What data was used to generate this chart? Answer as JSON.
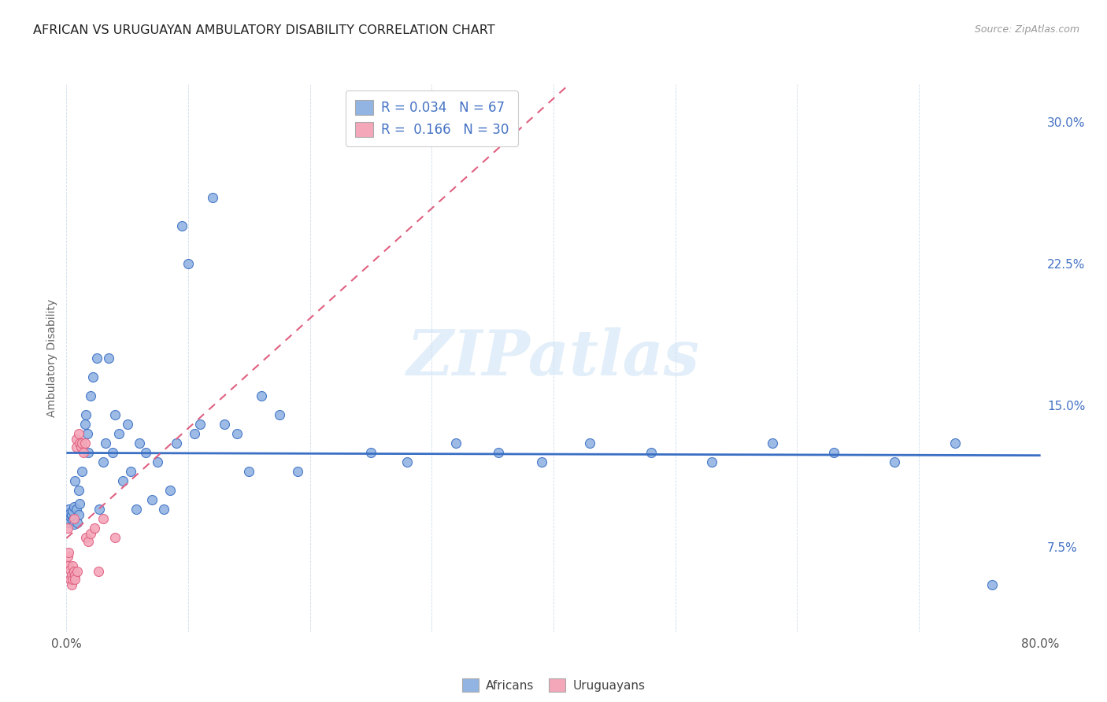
{
  "title": "AFRICAN VS URUGUAYAN AMBULATORY DISABILITY CORRELATION CHART",
  "source": "Source: ZipAtlas.com",
  "ylabel": "Ambulatory Disability",
  "xlim": [
    0.0,
    0.8
  ],
  "ylim": [
    0.03,
    0.32
  ],
  "xticks": [
    0.0,
    0.1,
    0.2,
    0.3,
    0.4,
    0.5,
    0.6,
    0.7,
    0.8
  ],
  "xticklabels": [
    "0.0%",
    "",
    "",
    "",
    "",
    "",
    "",
    "",
    "80.0%"
  ],
  "yticks_right": [
    0.075,
    0.15,
    0.225,
    0.3
  ],
  "yticklabels_right": [
    "7.5%",
    "15.0%",
    "22.5%",
    "30.0%"
  ],
  "R_african": 0.034,
  "N_african": 67,
  "R_uruguayan": 0.166,
  "N_uruguayan": 30,
  "african_color": "#92b4e3",
  "uruguayan_color": "#f4a7b9",
  "african_line_color": "#3a6fc4",
  "uruguayan_line_color": "#e06080",
  "legend_label_african": "Africans",
  "legend_label_uruguayan": "Uruguayans",
  "african_x": [
    0.001,
    0.002,
    0.002,
    0.003,
    0.003,
    0.004,
    0.005,
    0.005,
    0.006,
    0.006,
    0.007,
    0.008,
    0.009,
    0.01,
    0.01,
    0.011,
    0.012,
    0.013,
    0.015,
    0.016,
    0.017,
    0.018,
    0.02,
    0.022,
    0.025,
    0.027,
    0.03,
    0.032,
    0.035,
    0.038,
    0.04,
    0.043,
    0.046,
    0.05,
    0.053,
    0.057,
    0.06,
    0.065,
    0.07,
    0.075,
    0.08,
    0.085,
    0.09,
    0.095,
    0.1,
    0.105,
    0.11,
    0.12,
    0.13,
    0.14,
    0.15,
    0.16,
    0.175,
    0.19,
    0.25,
    0.28,
    0.32,
    0.355,
    0.39,
    0.43,
    0.48,
    0.53,
    0.58,
    0.63,
    0.68,
    0.73,
    0.76
  ],
  "african_y": [
    0.09,
    0.088,
    0.095,
    0.091,
    0.093,
    0.092,
    0.094,
    0.089,
    0.096,
    0.087,
    0.11,
    0.095,
    0.088,
    0.105,
    0.092,
    0.098,
    0.13,
    0.115,
    0.14,
    0.145,
    0.135,
    0.125,
    0.155,
    0.165,
    0.175,
    0.095,
    0.12,
    0.13,
    0.175,
    0.125,
    0.145,
    0.135,
    0.11,
    0.14,
    0.115,
    0.095,
    0.13,
    0.125,
    0.1,
    0.12,
    0.095,
    0.105,
    0.13,
    0.245,
    0.225,
    0.135,
    0.14,
    0.26,
    0.14,
    0.135,
    0.115,
    0.155,
    0.145,
    0.115,
    0.125,
    0.12,
    0.13,
    0.125,
    0.12,
    0.13,
    0.125,
    0.12,
    0.13,
    0.125,
    0.12,
    0.13,
    0.055
  ],
  "uruguayan_x": [
    0.001,
    0.001,
    0.002,
    0.002,
    0.003,
    0.003,
    0.004,
    0.004,
    0.005,
    0.005,
    0.006,
    0.006,
    0.007,
    0.007,
    0.008,
    0.008,
    0.009,
    0.01,
    0.011,
    0.012,
    0.013,
    0.014,
    0.015,
    0.016,
    0.018,
    0.02,
    0.023,
    0.026,
    0.03,
    0.04
  ],
  "uruguayan_y": [
    0.085,
    0.07,
    0.072,
    0.065,
    0.063,
    0.058,
    0.06,
    0.055,
    0.058,
    0.065,
    0.09,
    0.062,
    0.06,
    0.058,
    0.132,
    0.128,
    0.062,
    0.135,
    0.13,
    0.128,
    0.13,
    0.125,
    0.13,
    0.08,
    0.078,
    0.082,
    0.085,
    0.062,
    0.09,
    0.08
  ],
  "watermark_text": "ZIPatlas",
  "watermark_color": "#d0e4f5"
}
